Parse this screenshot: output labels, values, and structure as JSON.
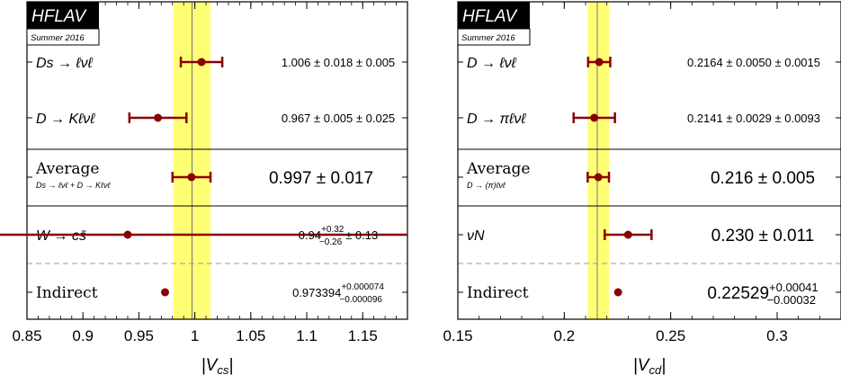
{
  "chart_data": [
    {
      "type": "scatter",
      "logo": "HFLAV",
      "edition": "Summer 2016",
      "xlabel_main": "|V",
      "xlabel_sub": "cs",
      "xlabel_end": "|",
      "xlim": [
        0.85,
        1.19
      ],
      "x_ticks": [
        0.85,
        0.9,
        0.95,
        1,
        1.05,
        1.1,
        1.15
      ],
      "x_tick_labels": [
        "0.85",
        "0.9",
        "0.95",
        "1",
        "1.05",
        "1.1",
        "1.15"
      ],
      "band": [
        0.981,
        1.014
      ],
      "ref_line": 0.9975,
      "rows": [
        {
          "label": "Ds → ℓνℓ",
          "label_sub": "",
          "value": 1.006,
          "err_lo": 0.0185,
          "err_hi": 0.0185,
          "value_text": "1.006 ± 0.018 ± 0.005",
          "big": false
        },
        {
          "label": "D → Kℓνℓ",
          "label_sub": "",
          "value": 0.967,
          "err_lo": 0.0255,
          "err_hi": 0.0255,
          "value_text": "0.967 ± 0.005 ± 0.025",
          "big": false
        },
        {
          "label": "Average",
          "label_sub": "Ds → ℓνℓ + D → Kℓνℓ",
          "value": 0.997,
          "err_lo": 0.017,
          "err_hi": 0.017,
          "value_text": "0.997 ± 0.017",
          "big": true
        },
        {
          "label": "W → cs̄",
          "label_sub": "",
          "value": 0.94,
          "err_lo": 0.26,
          "err_hi": 0.32,
          "value_text": "0.94",
          "value_sup": "+0.32",
          "value_subscr": "−0.26",
          "value_tail": "± 0.13",
          "big": false
        },
        {
          "label": "Indirect",
          "label_sub": "",
          "value": 0.973394,
          "err_lo": 9.6e-05,
          "err_hi": 7.4e-05,
          "value_text": "0.973394",
          "value_sup": "+0.000074",
          "value_subscr": "−0.000096",
          "big": false
        }
      ]
    },
    {
      "type": "scatter",
      "logo": "HFLAV",
      "edition": "Summer 2016",
      "xlabel_main": "|V",
      "xlabel_sub": "cd",
      "xlabel_end": "|",
      "xlim": [
        0.15,
        0.33
      ],
      "x_ticks": [
        0.15,
        0.2,
        0.25,
        0.3
      ],
      "x_tick_labels": [
        "0.15",
        "0.2",
        "0.25",
        "0.3"
      ],
      "band": [
        0.211,
        0.221
      ],
      "ref_line": 0.2155,
      "rows": [
        {
          "label": "D → ℓνℓ",
          "label_sub": "",
          "value": 0.2164,
          "err_lo": 0.0052,
          "err_hi": 0.0052,
          "value_text": "0.2164 ± 0.0050 ± 0.0015",
          "big": false
        },
        {
          "label": "D → πℓνℓ",
          "label_sub": "",
          "value": 0.2141,
          "err_lo": 0.0097,
          "err_hi": 0.0097,
          "value_text": "0.2141 ± 0.0029 ± 0.0093",
          "big": false
        },
        {
          "label": "Average",
          "label_sub": "D → (π)ℓνℓ",
          "value": 0.216,
          "err_lo": 0.005,
          "err_hi": 0.005,
          "value_text": "0.216 ± 0.005",
          "big": true
        },
        {
          "label": "νN",
          "label_sub": "",
          "value": 0.23,
          "err_lo": 0.011,
          "err_hi": 0.011,
          "value_text": "0.230 ± 0.011",
          "big": true
        },
        {
          "label": "Indirect",
          "label_sub": "",
          "value": 0.22529,
          "err_lo": 0.00032,
          "err_hi": 0.00041,
          "value_text": "0.22529",
          "value_sup": "+0.00041",
          "value_subscr": "−0.00032",
          "big": true
        }
      ]
    }
  ]
}
